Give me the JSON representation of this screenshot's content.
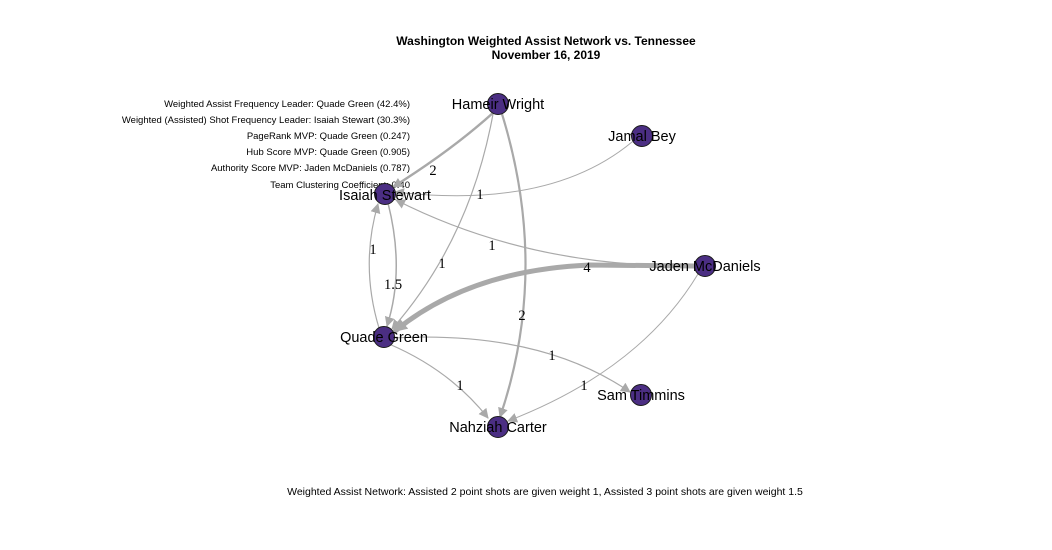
{
  "title": {
    "line1": "Washington Weighted Assist Network vs. Tennessee",
    "line2": "November 16, 2019"
  },
  "stats": [
    "Weighted Assist Frequency Leader: Quade Green (42.4%)",
    "Weighted (Assisted) Shot Frequency Leader: Isaiah Stewart (30.3%)",
    "PageRank MVP: Quade Green (0.247)",
    "Hub Score MVP: Quade Green (0.905)",
    "Authority Score MVP: Jaden McDaniels (0.787)",
    "Team Clustering Coefficient: 0.40"
  ],
  "caption": "Weighted Assist Network: Assisted 2 point shots are given weight 1, Assisted 3 point shots are given weight 1.5",
  "colors": {
    "node_fill": "#4b2e83",
    "edge": "#a9a9a9"
  },
  "nodes": [
    {
      "id": "hameir",
      "label": "Hameir Wright"
    },
    {
      "id": "jamal",
      "label": "Jamal Bey"
    },
    {
      "id": "isaiah",
      "label": "Isaiah Stewart"
    },
    {
      "id": "jaden",
      "label": "Jaden McDaniels"
    },
    {
      "id": "quade",
      "label": "Quade Green"
    },
    {
      "id": "sam",
      "label": "Sam Timmins"
    },
    {
      "id": "nahziah",
      "label": "Nahziah Carter"
    }
  ],
  "edges": [
    {
      "from": "hameir",
      "to": "isaiah",
      "weight": "2"
    },
    {
      "from": "hameir",
      "to": "quade",
      "weight": "1"
    },
    {
      "from": "hameir",
      "to": "nahziah",
      "weight": "2"
    },
    {
      "from": "jamal",
      "to": "isaiah",
      "weight": "1"
    },
    {
      "from": "jaden",
      "to": "isaiah",
      "weight": "1"
    },
    {
      "from": "jaden",
      "to": "quade",
      "weight": "4"
    },
    {
      "from": "jaden",
      "to": "nahziah",
      "weight": "1"
    },
    {
      "from": "isaiah",
      "to": "quade",
      "weight": "1.5"
    },
    {
      "from": "quade",
      "to": "isaiah",
      "weight": "1"
    },
    {
      "from": "quade",
      "to": "sam",
      "weight": "1"
    },
    {
      "from": "quade",
      "to": "nahziah",
      "weight": "1"
    }
  ]
}
